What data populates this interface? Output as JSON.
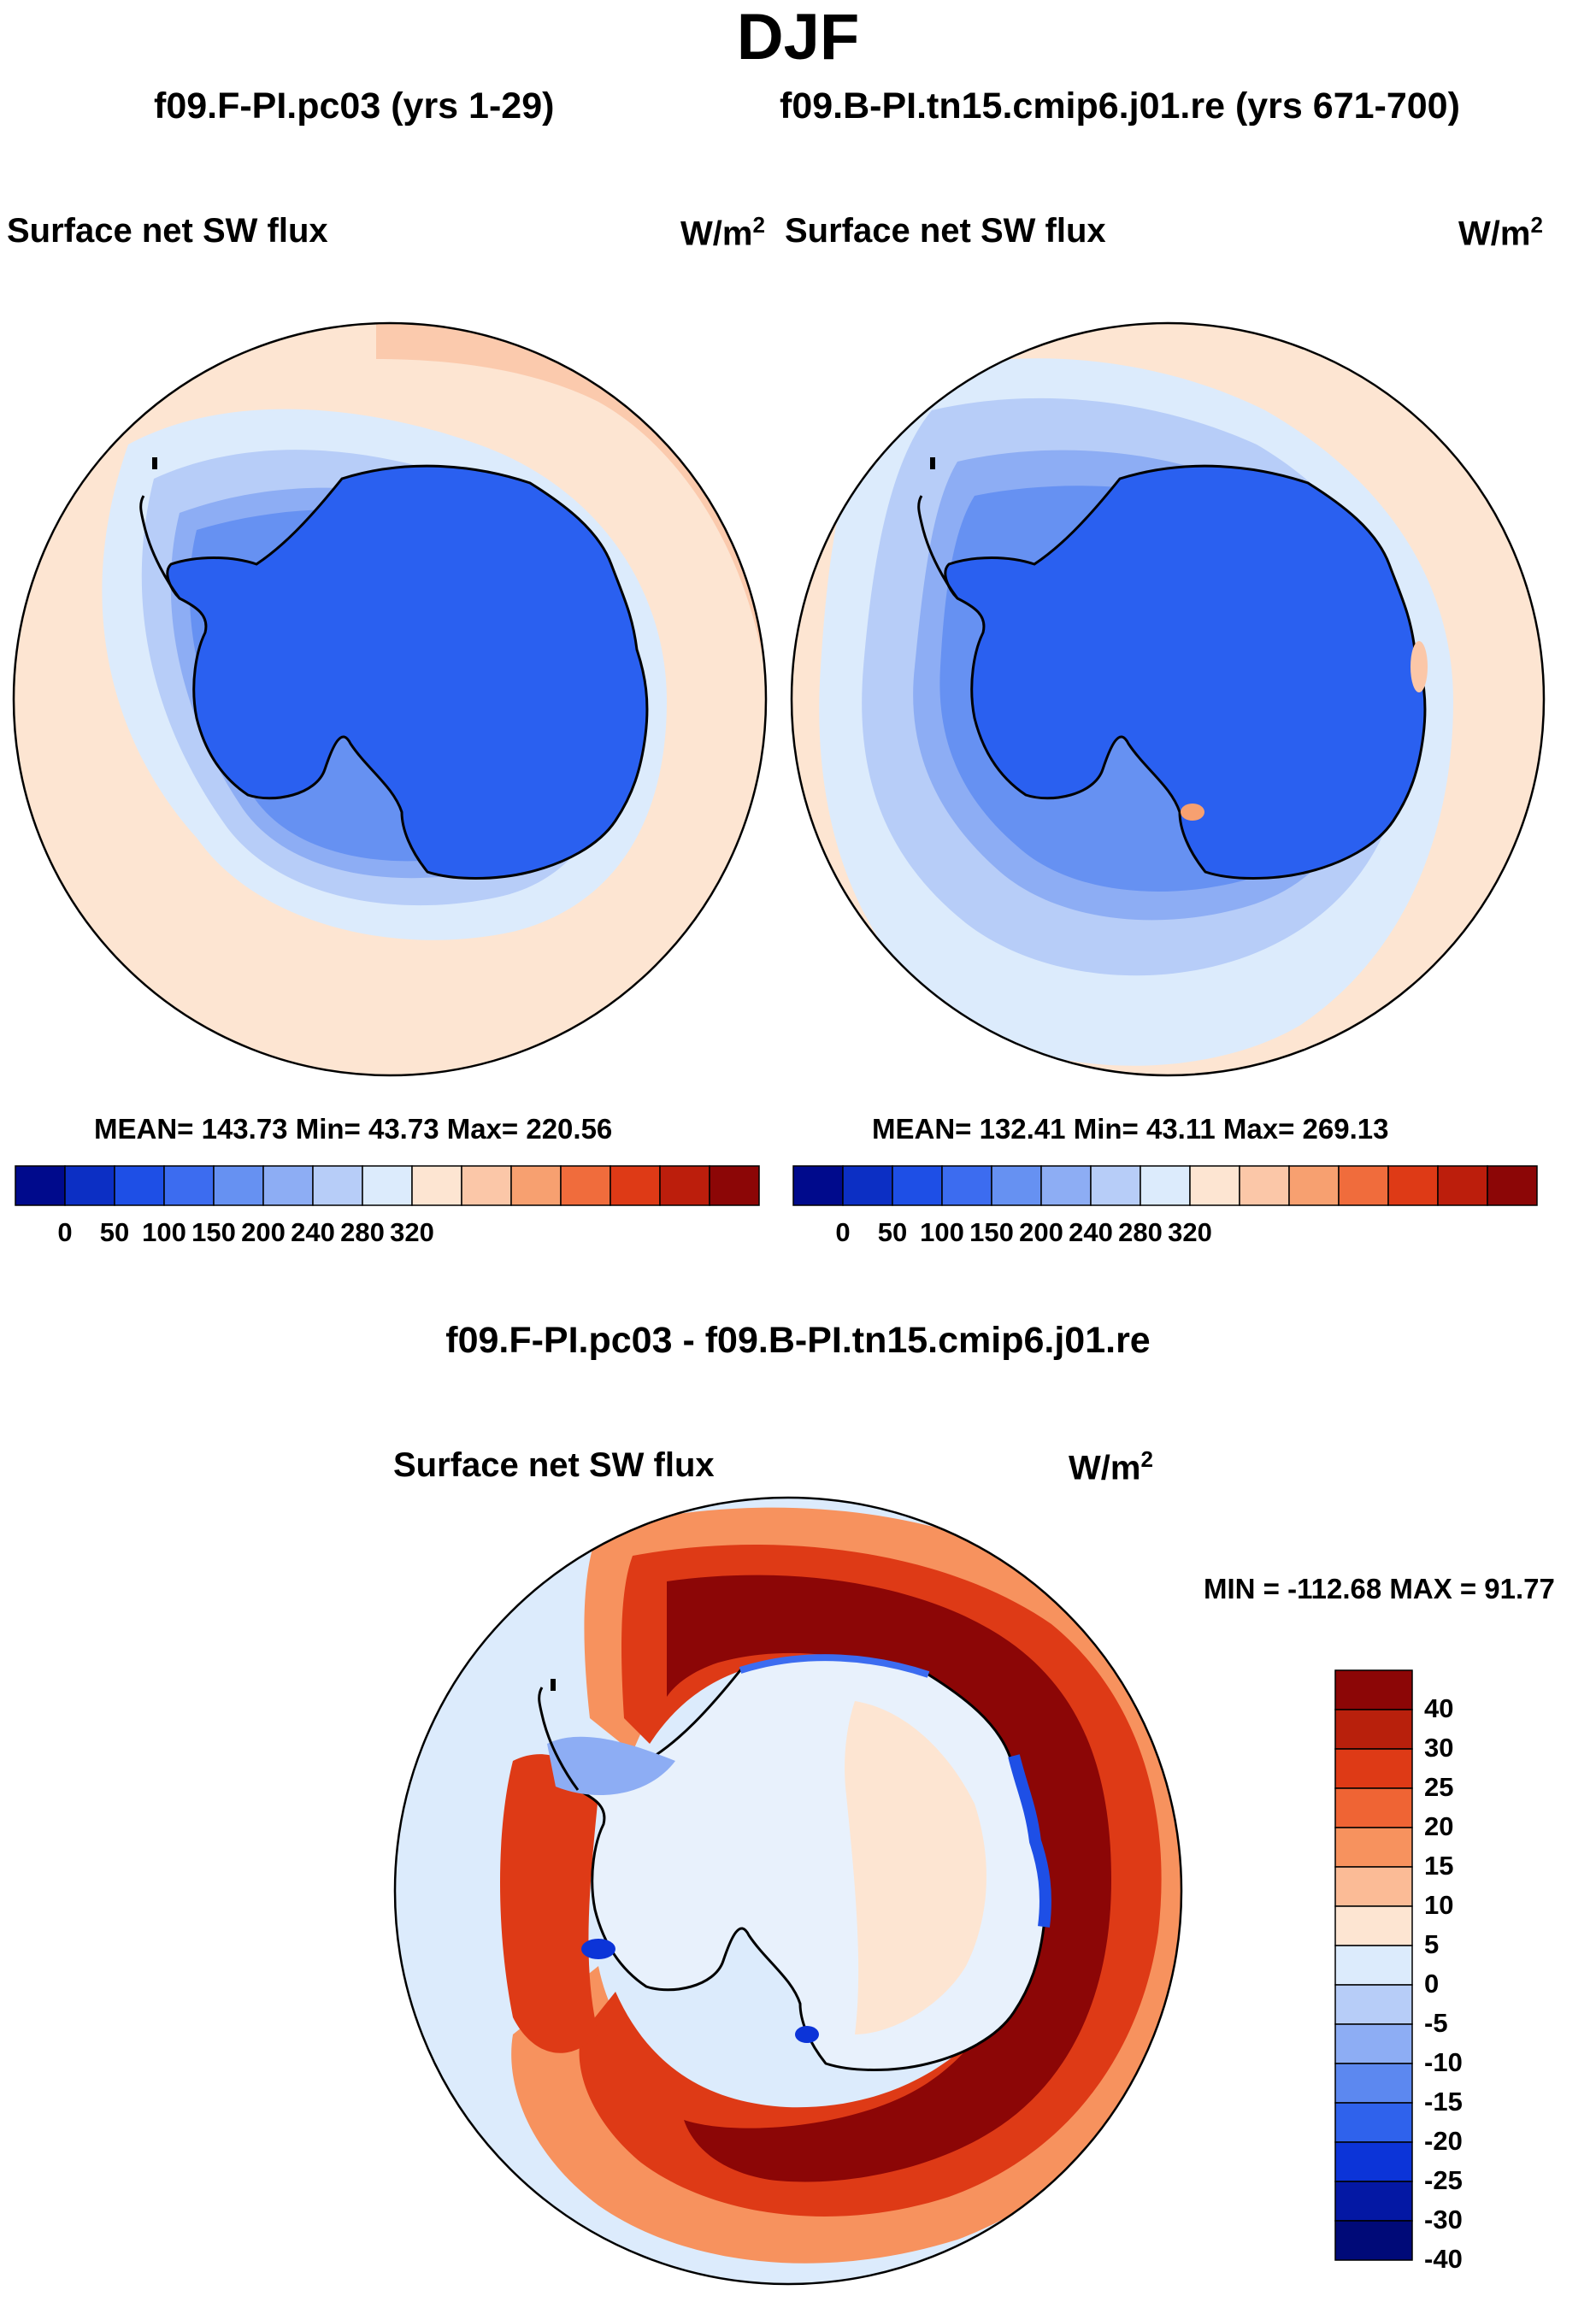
{
  "page": {
    "title": "DJF",
    "diff_title": "f09.F-PI.pc03 - f09.B-PI.tn15.cmip6.j01.re"
  },
  "colors": {
    "ocean_warm": "#fde5d2",
    "ice_blue": "#2a60f0",
    "coast": "#000000"
  },
  "chart_data": [
    {
      "type": "heatmap",
      "name": "panel-left",
      "case_title": "f09.F-PI.pc03 (yrs 1-29)",
      "variable": "Surface net SW flux",
      "units": "W/m",
      "units_sup": "2",
      "stats": "MEAN= 143.73  Min=  43.73  Max= 220.56",
      "projection": "south-polar-stereographic",
      "colorbar": {
        "orientation": "horizontal",
        "colors": [
          "#000a8c",
          "#0c2fc4",
          "#1e4fe6",
          "#3c6cf0",
          "#6691f2",
          "#8dadf4",
          "#b7cdf8",
          "#dcebfc",
          "#fde5d2",
          "#fbc7a8",
          "#f7a070",
          "#f06c3c",
          "#de3a16",
          "#bc1e0c",
          "#8c0606"
        ],
        "tick_labels": [
          "0",
          "50",
          "100",
          "150",
          "200",
          "240",
          "280",
          "320"
        ],
        "tick_levels": [
          0,
          50,
          100,
          150,
          200,
          240,
          280,
          320
        ]
      }
    },
    {
      "type": "heatmap",
      "name": "panel-right",
      "case_title": "f09.B-PI.tn15.cmip6.j01.re (yrs 671-700)",
      "variable": "Surface net SW flux",
      "units": "W/m",
      "units_sup": "2",
      "stats": "MEAN= 132.41  Min=  43.11  Max= 269.13",
      "projection": "south-polar-stereographic",
      "colorbar": {
        "orientation": "horizontal",
        "colors": [
          "#000a8c",
          "#0c2fc4",
          "#1e4fe6",
          "#3c6cf0",
          "#6691f2",
          "#8dadf4",
          "#b7cdf8",
          "#dcebfc",
          "#fde5d2",
          "#fbc7a8",
          "#f7a070",
          "#f06c3c",
          "#de3a16",
          "#bc1e0c",
          "#8c0606"
        ],
        "tick_labels": [
          "0",
          "50",
          "100",
          "150",
          "200",
          "240",
          "280",
          "320"
        ],
        "tick_levels": [
          0,
          50,
          100,
          150,
          200,
          240,
          280,
          320
        ]
      }
    },
    {
      "type": "heatmap",
      "name": "panel-diff",
      "variable": "Surface net SW flux",
      "units": "W/m",
      "units_sup": "2",
      "stats": "MIN = -112.68 MAX =  91.77",
      "projection": "south-polar-stereographic",
      "colorbar": {
        "orientation": "vertical",
        "colors_top_to_bottom": [
          "#8c0606",
          "#b8200c",
          "#de3a16",
          "#ef6434",
          "#f7925e",
          "#fbbb96",
          "#fde5d2",
          "#dcebfc",
          "#b7cdf8",
          "#8dadf4",
          "#5c88f0",
          "#2f62ec",
          "#0c34d8",
          "#0418a4",
          "#000a78"
        ],
        "tick_labels_top_to_bottom": [
          "40",
          "30",
          "25",
          "20",
          "15",
          "10",
          "5",
          "0",
          "-5",
          "-10",
          "-15",
          "-20",
          "-25",
          "-30",
          "-40"
        ],
        "tick_levels": [
          40,
          30,
          25,
          20,
          15,
          10,
          5,
          0,
          -5,
          -10,
          -15,
          -20,
          -25,
          -30,
          -40
        ]
      }
    }
  ]
}
